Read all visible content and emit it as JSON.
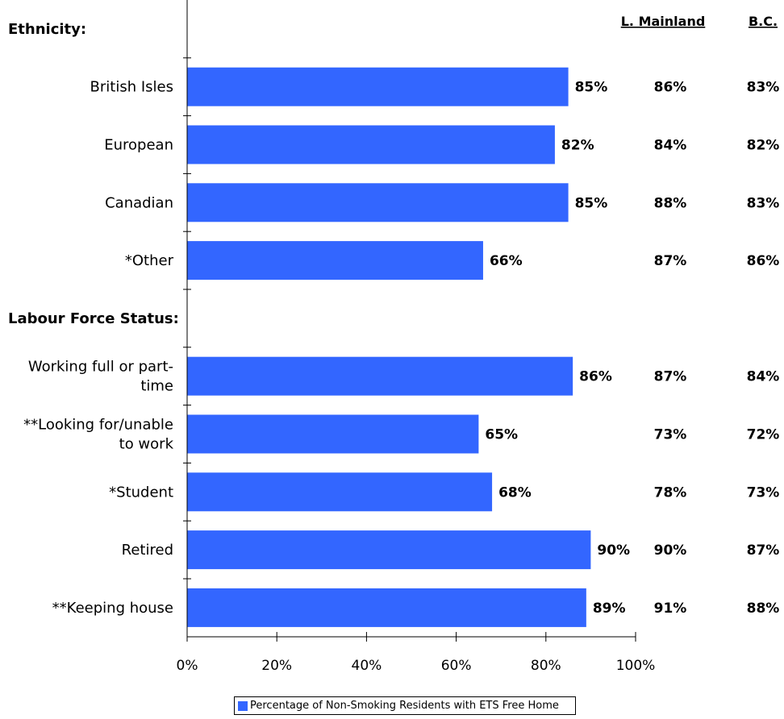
{
  "chart_data": {
    "type": "bar",
    "orientation": "horizontal",
    "bar_color": "#3366FF",
    "xlim": [
      0,
      100
    ],
    "x_ticks": [
      "0%",
      "20%",
      "40%",
      "60%",
      "80%",
      "100%"
    ],
    "column_headers": {
      "mainland": "L. Mainland",
      "bc": "B.C."
    },
    "sections": [
      {
        "title": "Ethnicity:",
        "rows": [
          {
            "label": "British Isles",
            "value": 85,
            "value_label": "85%",
            "mainland": "86%",
            "bc": "83%"
          },
          {
            "label": "European",
            "value": 82,
            "value_label": "82%",
            "mainland": "84%",
            "bc": "82%"
          },
          {
            "label": "Canadian",
            "value": 85,
            "value_label": "85%",
            "mainland": "88%",
            "bc": "83%"
          },
          {
            "label": "*Other",
            "value": 66,
            "value_label": "66%",
            "mainland": "87%",
            "bc": "86%"
          }
        ]
      },
      {
        "title": "Labour Force Status:",
        "rows": [
          {
            "label": "Working full or part-\ntime",
            "value": 86,
            "value_label": "86%",
            "mainland": "87%",
            "bc": "84%"
          },
          {
            "label": "**Looking for/unable\nto work",
            "value": 65,
            "value_label": "65%",
            "mainland": "73%",
            "bc": "72%"
          },
          {
            "label": "*Student",
            "value": 68,
            "value_label": "68%",
            "mainland": "78%",
            "bc": "73%"
          },
          {
            "label": "Retired",
            "value": 90,
            "value_label": "90%",
            "mainland": "90%",
            "bc": "87%"
          },
          {
            "label": "**Keeping house",
            "value": 89,
            "value_label": "89%",
            "mainland": "91%",
            "bc": "88%"
          }
        ]
      }
    ],
    "legend": {
      "label": "Percentage of Non-Smoking Residents with ETS Free Home",
      "position": "bottom"
    }
  }
}
